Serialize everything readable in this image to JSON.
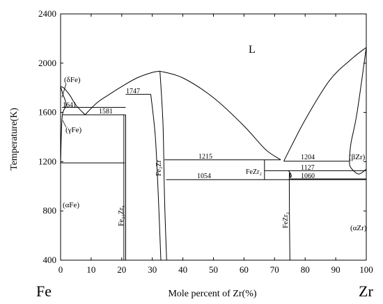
{
  "chart_data": {
    "type": "line",
    "title": "",
    "xlabel": "Mole percent of Zr(%)",
    "ylabel": "Temperature(K)",
    "xlim": [
      0,
      100
    ],
    "ylim": [
      400,
      2400
    ],
    "xticks": [
      "0",
      "10",
      "20",
      "30",
      "40",
      "50",
      "60",
      "70",
      "80",
      "90",
      "100"
    ],
    "yticks": [
      "400",
      "800",
      "1200",
      "1600",
      "2000",
      "2400"
    ],
    "element_labels": {
      "left": "Fe",
      "right": "Zr"
    },
    "region_labels": {
      "liquid": "L",
      "delta_fe": "(δFe)",
      "gamma_fe": "(γFe)",
      "alpha_fe": "(αFe)",
      "beta_zr": "(βZr)",
      "alpha_zr": "(αZr)",
      "fe23zr6": "Fe₂₃Zr₆",
      "fe2zr": "Fe₂Zr",
      "fezr2": "FeZr₂",
      "fezr3": "FeZr₃"
    },
    "invariant_labels": [
      "1641",
      "1581",
      "1747",
      "1215",
      "1054",
      "1204",
      "1127",
      "1060"
    ],
    "curves": [
      {
        "name": "",
        "x": [
          0,
          1,
          3,
          5,
          8
        ],
        "y": [
          1809,
          1800,
          1740,
          1660,
          1581
        ]
      },
      {
        "name": "",
        "x": [
          8,
          12,
          16,
          20,
          25,
          30,
          32.5
        ],
        "y": [
          1581,
          1680,
          1747,
          1810,
          1880,
          1925,
          1935
        ]
      },
      {
        "name": "",
        "x": [
          32.5,
          40,
          50,
          60,
          67,
          72
        ],
        "y": [
          1935,
          1880,
          1720,
          1490,
          1300,
          1215
        ]
      },
      {
        "name": "",
        "x": [
          73,
          80,
          88,
          95,
          100
        ],
        "y": [
          1204,
          1540,
          1860,
          2030,
          2128
        ]
      },
      {
        "name": "",
        "x": [
          0,
          0.8,
          1.8,
          0.5,
          0
        ],
        "y": [
          1809,
          1745,
          1660,
          1560,
          1185
        ]
      },
      {
        "name": "",
        "x": [
          20.7,
          20.7
        ],
        "y": [
          1581,
          400
        ]
      },
      {
        "name": "",
        "x": [
          21.3,
          21.3
        ],
        "y": [
          1581,
          400
        ]
      },
      {
        "name": "",
        "x": [
          29.5,
          31,
          32,
          32.8
        ],
        "y": [
          1747,
          1400,
          900,
          400
        ]
      },
      {
        "name": "",
        "x": [
          32.5,
          33.5,
          34,
          34.7
        ],
        "y": [
          1935,
          1500,
          900,
          400
        ]
      },
      {
        "name": "",
        "x": [
          66.7,
          66.7
        ],
        "y": [
          1215,
          1054
        ]
      },
      {
        "name": "",
        "x": [
          74.5,
          75.2,
          75.5,
          75.2,
          74.8,
          75
        ],
        "y": [
          1127,
          1105,
          1085,
          1070,
          1060,
          400
        ]
      },
      {
        "name": "",
        "x": [
          100,
          97,
          95,
          94.5,
          95,
          97.5,
          100
        ],
        "y": [
          2128,
          1600,
          1350,
          1204,
          1150,
          1100,
          1140
        ]
      }
    ],
    "isotherms": [
      {
        "x1": 0.5,
        "x2": 21.3,
        "y": 1641
      },
      {
        "x1": 0.7,
        "x2": 21.3,
        "y": 1581
      },
      {
        "x1": 21.3,
        "x2": 29.5,
        "y": 1747
      },
      {
        "x1": 34,
        "x2": 72,
        "y": 1215
      },
      {
        "x1": 73,
        "x2": 94.5,
        "y": 1204
      },
      {
        "x1": 66.7,
        "x2": 100,
        "y": 1127
      },
      {
        "x1": 34.5,
        "x2": 100,
        "y": 1054
      },
      {
        "x1": 75,
        "x2": 100,
        "y": 1060
      },
      {
        "x1": 0,
        "x2": 21,
        "y": 1190
      }
    ]
  }
}
